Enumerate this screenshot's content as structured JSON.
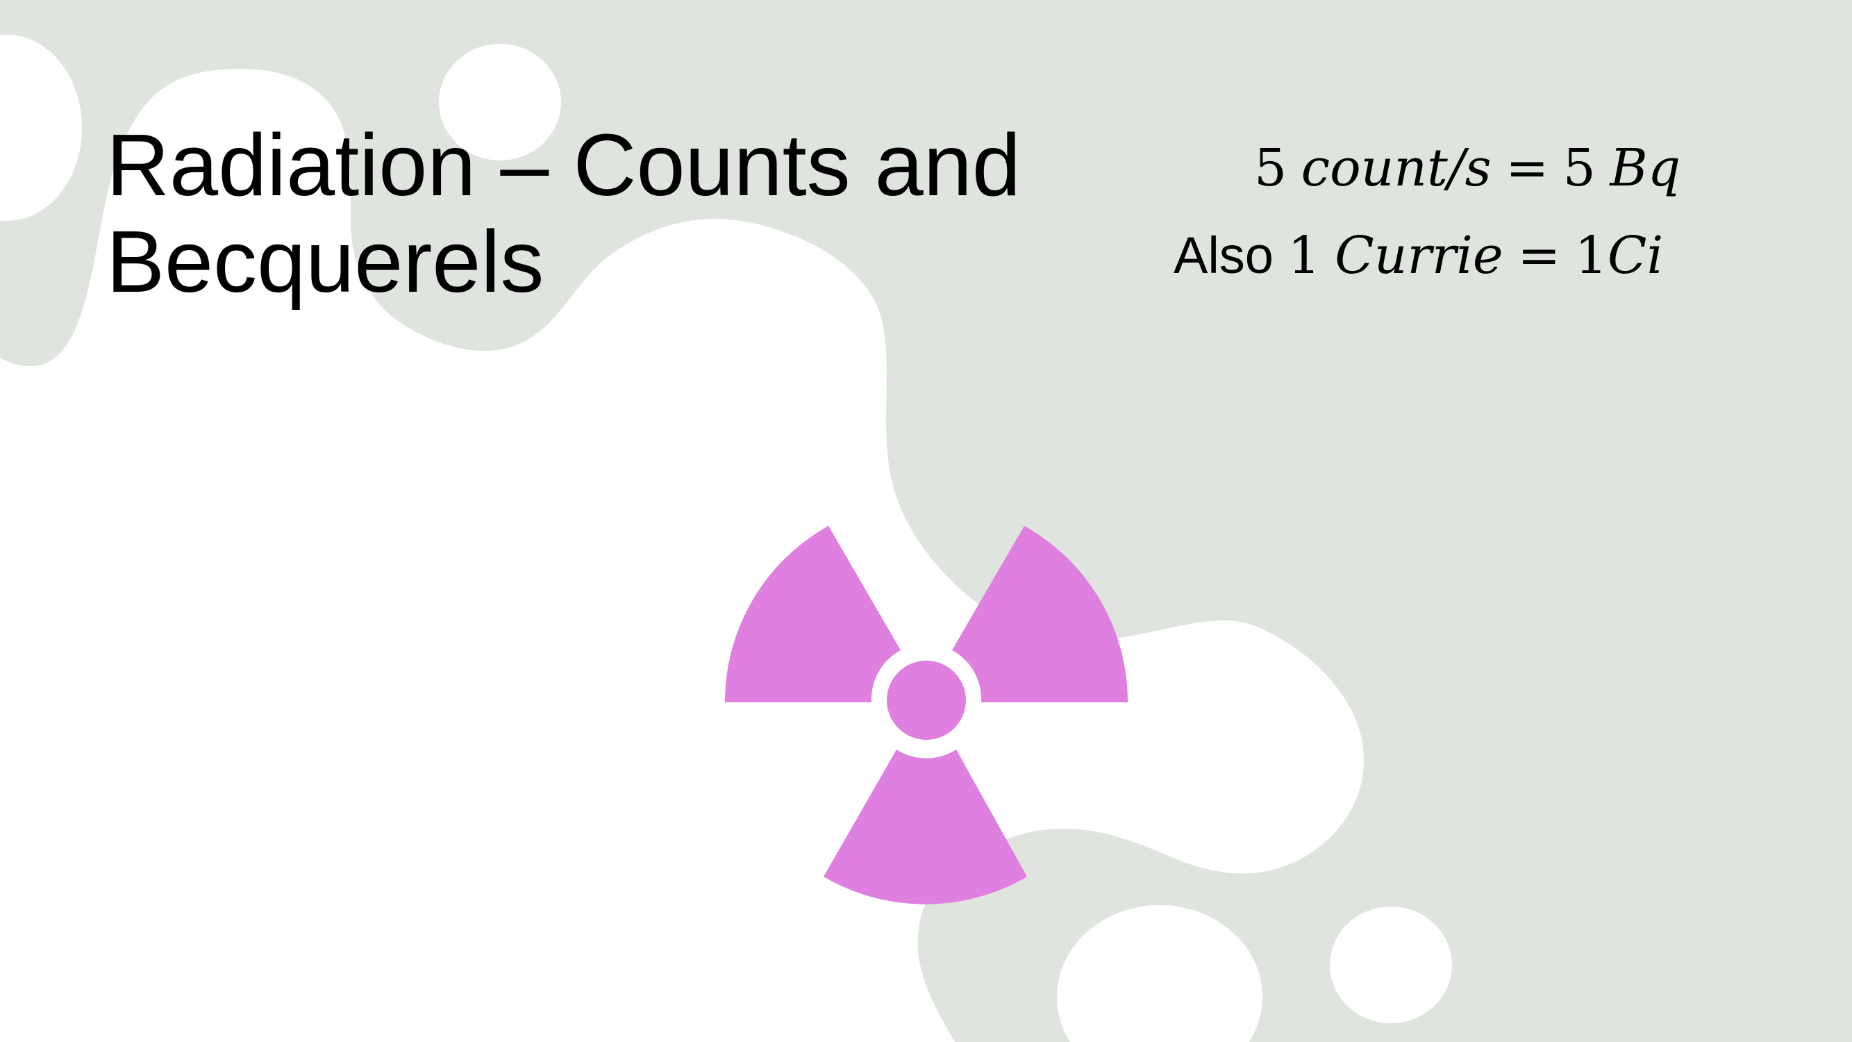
{
  "slide": {
    "title": "Radiation – Counts and\nBecquerels",
    "equation_1": {
      "lhs_number": "5",
      "lhs_unit": "count/s",
      "equals": "=",
      "rhs_number": "5",
      "rhs_unit": "Bq"
    },
    "equation_2": {
      "prefix": "Also",
      "lhs_number": "1",
      "lhs_unit": "Currie",
      "equals": "=",
      "rhs_number": "1",
      "rhs_unit": "Ci"
    }
  },
  "colors": {
    "background_shape": "#DFE4DF",
    "page": "#FFFFFF",
    "symbol": "#DF7FDF",
    "text": "#000000"
  },
  "icons": {
    "main": "radiation-trefoil-icon"
  }
}
